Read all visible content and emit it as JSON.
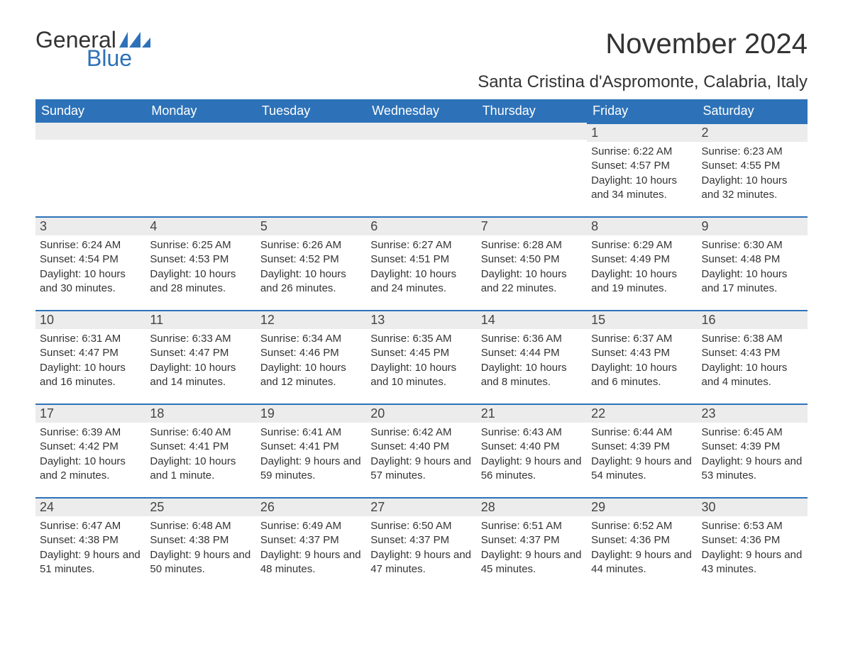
{
  "brand": {
    "text1": "General",
    "text2": "Blue",
    "color_dark": "#333333",
    "color_blue": "#2d72b8"
  },
  "title": "November 2024",
  "location": "Santa Cristina d'Aspromonte, Calabria, Italy",
  "colors": {
    "header_bg": "#2d72b8",
    "header_text": "#ffffff",
    "daynum_bg": "#ececec",
    "border": "#2d72b8",
    "text": "#333333",
    "background": "#ffffff"
  },
  "fonts": {
    "title_size": 40,
    "location_size": 24,
    "dayheader_size": 18,
    "daynum_size": 18,
    "body_size": 15
  },
  "day_headers": [
    "Sunday",
    "Monday",
    "Tuesday",
    "Wednesday",
    "Thursday",
    "Friday",
    "Saturday"
  ],
  "weeks": [
    [
      null,
      null,
      null,
      null,
      null,
      {
        "n": "1",
        "sunrise": "Sunrise: 6:22 AM",
        "sunset": "Sunset: 4:57 PM",
        "daylight": "Daylight: 10 hours and 34 minutes."
      },
      {
        "n": "2",
        "sunrise": "Sunrise: 6:23 AM",
        "sunset": "Sunset: 4:55 PM",
        "daylight": "Daylight: 10 hours and 32 minutes."
      }
    ],
    [
      {
        "n": "3",
        "sunrise": "Sunrise: 6:24 AM",
        "sunset": "Sunset: 4:54 PM",
        "daylight": "Daylight: 10 hours and 30 minutes."
      },
      {
        "n": "4",
        "sunrise": "Sunrise: 6:25 AM",
        "sunset": "Sunset: 4:53 PM",
        "daylight": "Daylight: 10 hours and 28 minutes."
      },
      {
        "n": "5",
        "sunrise": "Sunrise: 6:26 AM",
        "sunset": "Sunset: 4:52 PM",
        "daylight": "Daylight: 10 hours and 26 minutes."
      },
      {
        "n": "6",
        "sunrise": "Sunrise: 6:27 AM",
        "sunset": "Sunset: 4:51 PM",
        "daylight": "Daylight: 10 hours and 24 minutes."
      },
      {
        "n": "7",
        "sunrise": "Sunrise: 6:28 AM",
        "sunset": "Sunset: 4:50 PM",
        "daylight": "Daylight: 10 hours and 22 minutes."
      },
      {
        "n": "8",
        "sunrise": "Sunrise: 6:29 AM",
        "sunset": "Sunset: 4:49 PM",
        "daylight": "Daylight: 10 hours and 19 minutes."
      },
      {
        "n": "9",
        "sunrise": "Sunrise: 6:30 AM",
        "sunset": "Sunset: 4:48 PM",
        "daylight": "Daylight: 10 hours and 17 minutes."
      }
    ],
    [
      {
        "n": "10",
        "sunrise": "Sunrise: 6:31 AM",
        "sunset": "Sunset: 4:47 PM",
        "daylight": "Daylight: 10 hours and 16 minutes."
      },
      {
        "n": "11",
        "sunrise": "Sunrise: 6:33 AM",
        "sunset": "Sunset: 4:47 PM",
        "daylight": "Daylight: 10 hours and 14 minutes."
      },
      {
        "n": "12",
        "sunrise": "Sunrise: 6:34 AM",
        "sunset": "Sunset: 4:46 PM",
        "daylight": "Daylight: 10 hours and 12 minutes."
      },
      {
        "n": "13",
        "sunrise": "Sunrise: 6:35 AM",
        "sunset": "Sunset: 4:45 PM",
        "daylight": "Daylight: 10 hours and 10 minutes."
      },
      {
        "n": "14",
        "sunrise": "Sunrise: 6:36 AM",
        "sunset": "Sunset: 4:44 PM",
        "daylight": "Daylight: 10 hours and 8 minutes."
      },
      {
        "n": "15",
        "sunrise": "Sunrise: 6:37 AM",
        "sunset": "Sunset: 4:43 PM",
        "daylight": "Daylight: 10 hours and 6 minutes."
      },
      {
        "n": "16",
        "sunrise": "Sunrise: 6:38 AM",
        "sunset": "Sunset: 4:43 PM",
        "daylight": "Daylight: 10 hours and 4 minutes."
      }
    ],
    [
      {
        "n": "17",
        "sunrise": "Sunrise: 6:39 AM",
        "sunset": "Sunset: 4:42 PM",
        "daylight": "Daylight: 10 hours and 2 minutes."
      },
      {
        "n": "18",
        "sunrise": "Sunrise: 6:40 AM",
        "sunset": "Sunset: 4:41 PM",
        "daylight": "Daylight: 10 hours and 1 minute."
      },
      {
        "n": "19",
        "sunrise": "Sunrise: 6:41 AM",
        "sunset": "Sunset: 4:41 PM",
        "daylight": "Daylight: 9 hours and 59 minutes."
      },
      {
        "n": "20",
        "sunrise": "Sunrise: 6:42 AM",
        "sunset": "Sunset: 4:40 PM",
        "daylight": "Daylight: 9 hours and 57 minutes."
      },
      {
        "n": "21",
        "sunrise": "Sunrise: 6:43 AM",
        "sunset": "Sunset: 4:40 PM",
        "daylight": "Daylight: 9 hours and 56 minutes."
      },
      {
        "n": "22",
        "sunrise": "Sunrise: 6:44 AM",
        "sunset": "Sunset: 4:39 PM",
        "daylight": "Daylight: 9 hours and 54 minutes."
      },
      {
        "n": "23",
        "sunrise": "Sunrise: 6:45 AM",
        "sunset": "Sunset: 4:39 PM",
        "daylight": "Daylight: 9 hours and 53 minutes."
      }
    ],
    [
      {
        "n": "24",
        "sunrise": "Sunrise: 6:47 AM",
        "sunset": "Sunset: 4:38 PM",
        "daylight": "Daylight: 9 hours and 51 minutes."
      },
      {
        "n": "25",
        "sunrise": "Sunrise: 6:48 AM",
        "sunset": "Sunset: 4:38 PM",
        "daylight": "Daylight: 9 hours and 50 minutes."
      },
      {
        "n": "26",
        "sunrise": "Sunrise: 6:49 AM",
        "sunset": "Sunset: 4:37 PM",
        "daylight": "Daylight: 9 hours and 48 minutes."
      },
      {
        "n": "27",
        "sunrise": "Sunrise: 6:50 AM",
        "sunset": "Sunset: 4:37 PM",
        "daylight": "Daylight: 9 hours and 47 minutes."
      },
      {
        "n": "28",
        "sunrise": "Sunrise: 6:51 AM",
        "sunset": "Sunset: 4:37 PM",
        "daylight": "Daylight: 9 hours and 45 minutes."
      },
      {
        "n": "29",
        "sunrise": "Sunrise: 6:52 AM",
        "sunset": "Sunset: 4:36 PM",
        "daylight": "Daylight: 9 hours and 44 minutes."
      },
      {
        "n": "30",
        "sunrise": "Sunrise: 6:53 AM",
        "sunset": "Sunset: 4:36 PM",
        "daylight": "Daylight: 9 hours and 43 minutes."
      }
    ]
  ]
}
